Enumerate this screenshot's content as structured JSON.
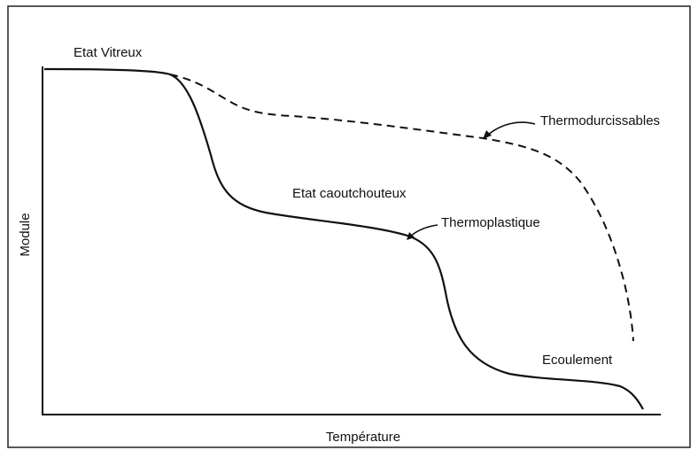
{
  "labels": {
    "glassy": "Etat Vitreux",
    "thermoset": "Thermodurcissables",
    "rubbery": "Etat caoutchouteux",
    "thermoplastic": "Thermoplastique",
    "flow": "Ecoulement"
  },
  "axes": {
    "y": "Module",
    "x": "Température"
  }
}
